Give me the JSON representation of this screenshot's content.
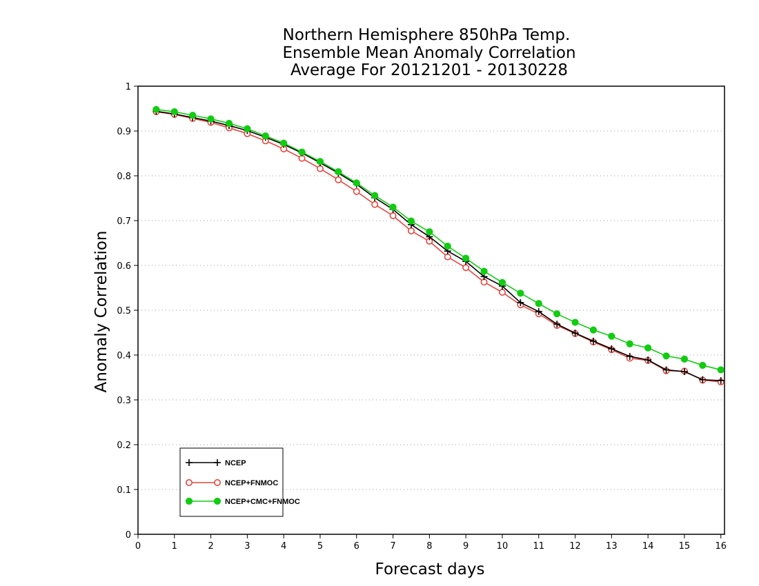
{
  "chart_data": {
    "type": "line",
    "title": [
      "Northern Hemisphere 850hPa Temp.",
      "Ensemble Mean Anomaly Correlation",
      "Average For 20121201 - 20130228"
    ],
    "xlabel": "Forecast days",
    "ylabel": "Anomaly Correlation",
    "xlim": [
      0,
      16.1
    ],
    "ylim": [
      0,
      1
    ],
    "xticks": [
      "0",
      "1",
      "2",
      "3",
      "4",
      "5",
      "6",
      "7",
      "8",
      "9",
      "10",
      "11",
      "12",
      "13",
      "14",
      "15",
      "16"
    ],
    "yticks": [
      "0",
      "0.1",
      "0.2",
      "0.3",
      "0.4",
      "0.5",
      "0.6",
      "0.7",
      "0.8",
      "0.9",
      "1"
    ],
    "grid": "horizontal dotted",
    "legend_position": "bottom-left",
    "x": [
      0.5,
      1,
      1.5,
      2,
      2.5,
      3,
      3.5,
      4,
      4.5,
      5,
      5.5,
      6,
      6.5,
      7,
      7.5,
      8,
      8.5,
      9,
      9.5,
      10,
      10.5,
      11,
      11.5,
      12,
      12.5,
      13,
      13.5,
      14,
      14.5,
      15,
      15.5,
      16
    ],
    "series": [
      {
        "name": "NCEP",
        "color": "#000000",
        "marker": "plus",
        "values": [
          0.944,
          0.938,
          0.93,
          0.922,
          0.912,
          0.901,
          0.886,
          0.87,
          0.851,
          0.829,
          0.806,
          0.781,
          0.751,
          0.725,
          0.691,
          0.664,
          0.632,
          0.609,
          0.575,
          0.554,
          0.517,
          0.497,
          0.469,
          0.449,
          0.431,
          0.414,
          0.397,
          0.389,
          0.367,
          0.363,
          0.345,
          0.343
        ]
      },
      {
        "name": "NCEP+FNMOC",
        "color": "#e8453c",
        "marker": "open-circle",
        "values": [
          0.943,
          0.937,
          0.928,
          0.919,
          0.907,
          0.894,
          0.878,
          0.86,
          0.839,
          0.816,
          0.791,
          0.765,
          0.736,
          0.711,
          0.677,
          0.654,
          0.619,
          0.595,
          0.563,
          0.54,
          0.512,
          0.492,
          0.466,
          0.448,
          0.429,
          0.412,
          0.393,
          0.388,
          0.365,
          0.364,
          0.344,
          0.34
        ]
      },
      {
        "name": "NCEP+CMC+FNMOC",
        "color": "#11cc11",
        "marker": "filled-circle",
        "values": [
          0.948,
          0.943,
          0.935,
          0.927,
          0.917,
          0.905,
          0.889,
          0.873,
          0.853,
          0.832,
          0.809,
          0.784,
          0.756,
          0.73,
          0.699,
          0.675,
          0.643,
          0.616,
          0.587,
          0.562,
          0.538,
          0.515,
          0.492,
          0.473,
          0.456,
          0.442,
          0.425,
          0.416,
          0.398,
          0.391,
          0.377,
          0.367
        ]
      }
    ]
  }
}
